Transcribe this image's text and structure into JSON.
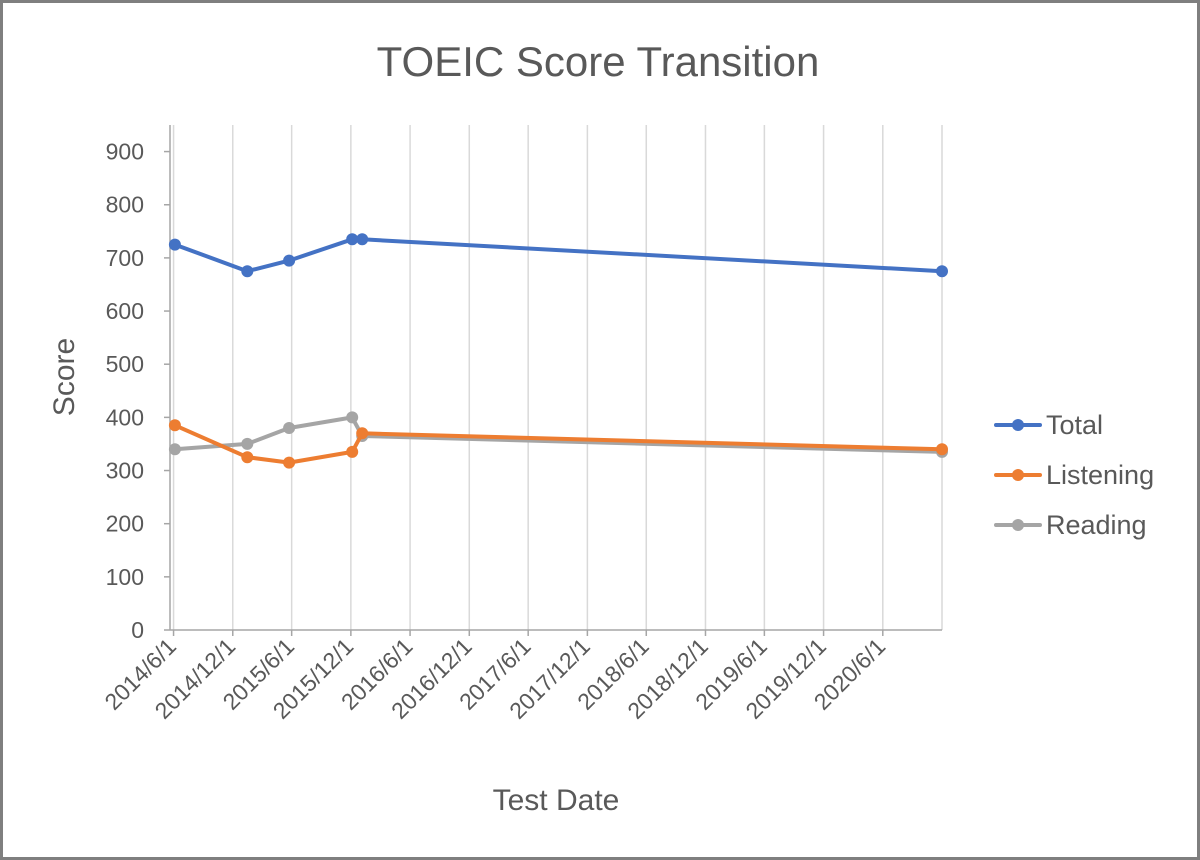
{
  "chart_data": {
    "type": "line",
    "title": "TOEIC Score Transition",
    "xlabel": "Test Date",
    "ylabel": "Score",
    "ylim": [
      0,
      950
    ],
    "yticks": [
      0,
      100,
      200,
      300,
      400,
      500,
      600,
      700,
      800,
      900
    ],
    "xlim": [
      "2014-05-21",
      "2020-12-01"
    ],
    "xticks": [
      "2014-06-01",
      "2014-12-01",
      "2015-06-01",
      "2015-12-01",
      "2016-06-01",
      "2016-12-01",
      "2017-06-01",
      "2017-12-01",
      "2018-06-01",
      "2018-12-01",
      "2019-06-01",
      "2019-12-01",
      "2020-06-01"
    ],
    "xtick_labels": [
      "2014/6/1",
      "2014/12/1",
      "2015/6/1",
      "2015/12/1",
      "2016/6/1",
      "2016/12/1",
      "2017/6/1",
      "2017/12/1",
      "2018/6/1",
      "2018/12/1",
      "2019/6/1",
      "2019/12/1",
      "2020/6/1"
    ],
    "x": [
      "2014-06-05",
      "2015-01-15",
      "2015-05-24",
      "2015-12-05",
      "2016-01-05",
      "2020-12-01"
    ],
    "grid": "vertical",
    "legend_position": "right",
    "series": [
      {
        "name": "Total",
        "color": "#4472c4",
        "values": [
          725,
          675,
          695,
          735,
          735,
          675
        ]
      },
      {
        "name": "Listening",
        "color": "#ed7d31",
        "values": [
          385,
          325,
          315,
          335,
          370,
          340
        ]
      },
      {
        "name": "Reading",
        "color": "#a5a5a5",
        "values": [
          340,
          350,
          380,
          400,
          365,
          335
        ]
      }
    ]
  }
}
